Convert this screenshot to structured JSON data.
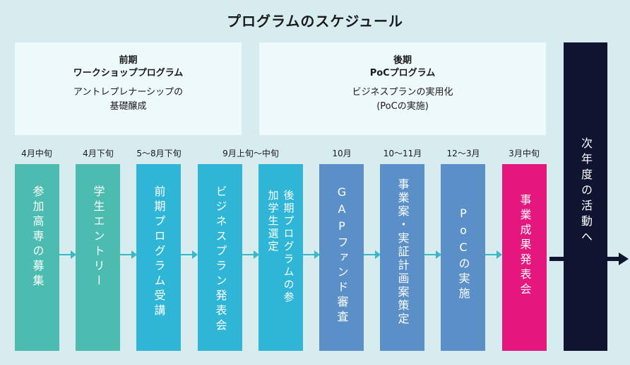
{
  "title": "プログラムのスケジュール",
  "phases": [
    {
      "heading_line1": "前期",
      "heading_line2": "ワークショッププログラム",
      "desc_line1": "アントレプレナーシップの",
      "desc_line2": "基礎醸成"
    },
    {
      "heading_line1": "後期",
      "heading_line2": "PoCプログラム",
      "desc_line1": "ビジネスプランの実用化",
      "desc_line2": "(PoCの実施)"
    }
  ],
  "timeline_labels": [
    "4月中旬",
    "4月下旬",
    "5〜8月下旬",
    "9月上旬〜中旬",
    "10月",
    "10〜11月",
    "12〜3月",
    "3月中旬"
  ],
  "steps": [
    {
      "text": "参加高専の募集",
      "color": "#4cbcb1"
    },
    {
      "text": "学生エントリー",
      "color": "#4cbcb1"
    },
    {
      "text": "前期プログラム受講",
      "color": "#2fb6d6"
    },
    {
      "text": "ビジネスプラン発表会",
      "color": "#2fb6d6"
    },
    {
      "text": "後期プログラムの参加学生選定",
      "color": "#2fb6d6"
    },
    {
      "text": "GAPファンド審査",
      "color": "#5b8fc8"
    },
    {
      "text": "事業案・実証計画案策定",
      "color": "#5b8fc8"
    },
    {
      "text": "PoCの実施",
      "color": "#5b8fc8"
    },
    {
      "text": "事業成果発表会",
      "color": "#e5177f"
    }
  ],
  "next_year": "次年度の活動へ"
}
